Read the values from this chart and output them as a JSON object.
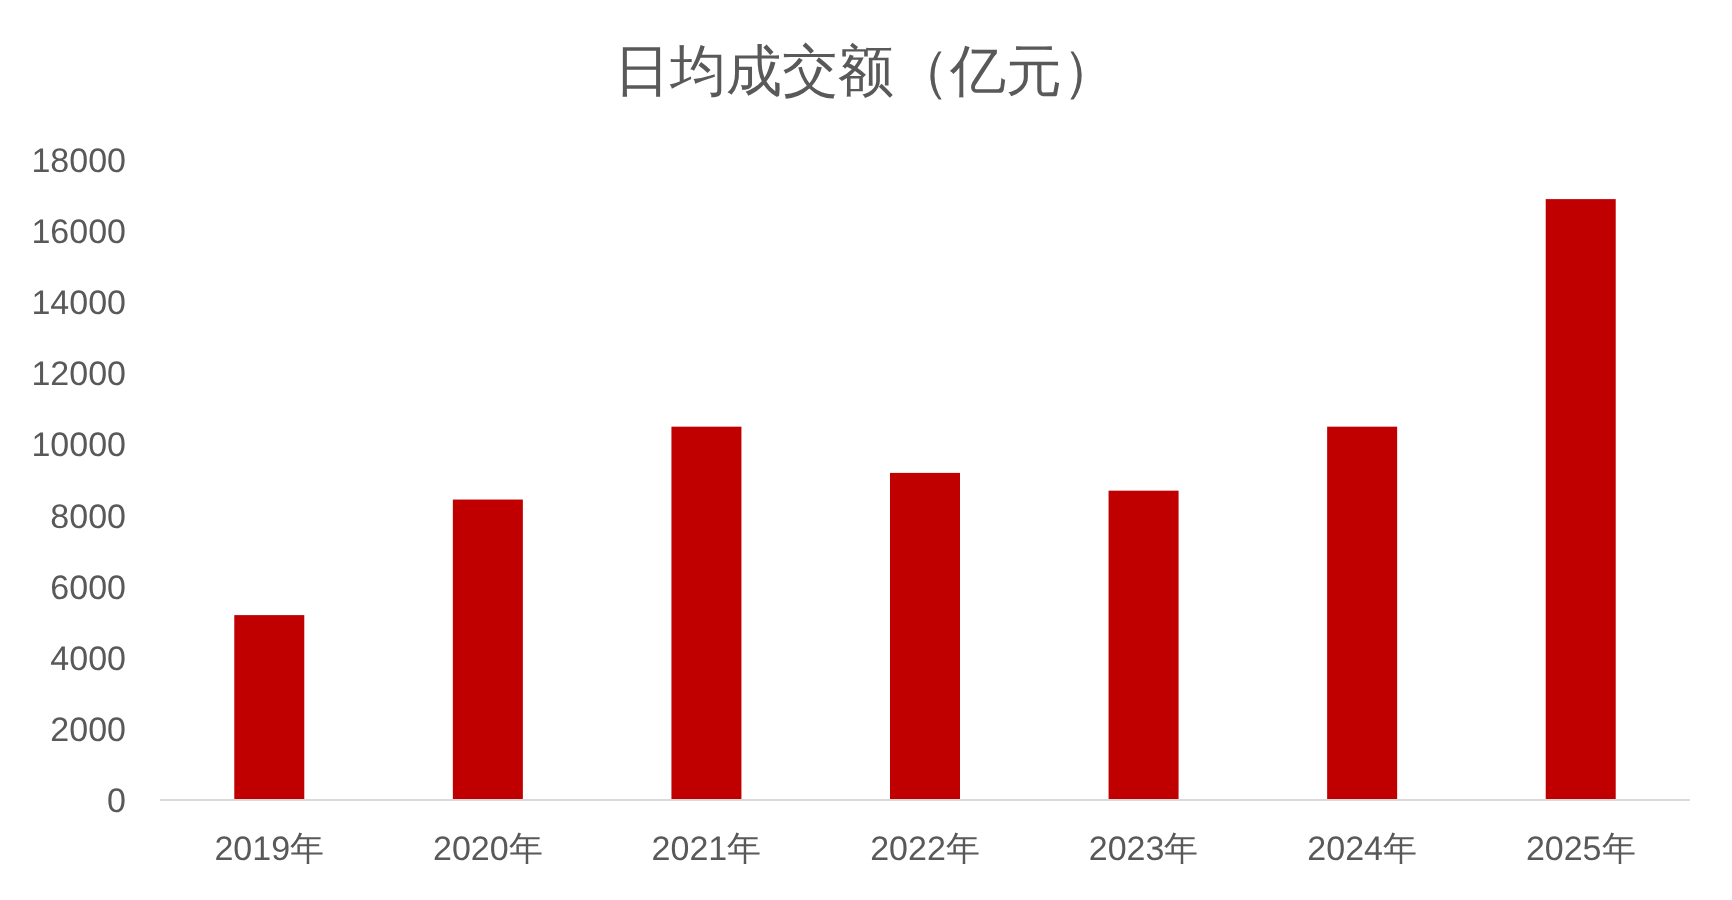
{
  "chart_data": {
    "type": "bar",
    "title": "日均成交额（亿元）",
    "categories": [
      "2019年",
      "2020年",
      "2021年",
      "2022年",
      "2023年",
      "2024年",
      "2025年"
    ],
    "values": [
      5200,
      8450,
      10500,
      9200,
      8700,
      10500,
      16900
    ],
    "color": "#c00000",
    "ylim": [
      0,
      18000
    ],
    "yticks": [
      0,
      2000,
      4000,
      6000,
      8000,
      10000,
      12000,
      14000,
      16000,
      18000
    ]
  }
}
